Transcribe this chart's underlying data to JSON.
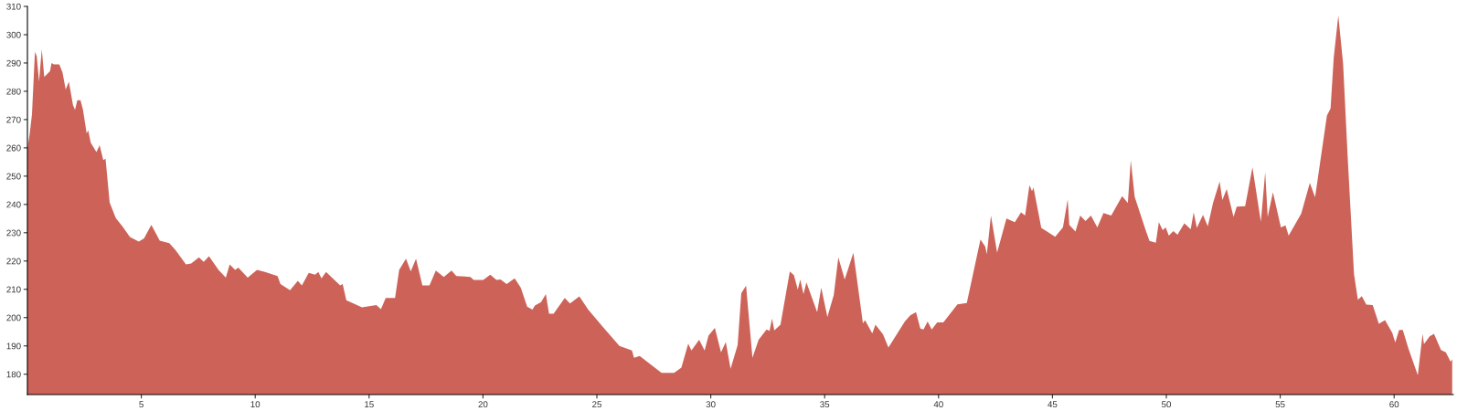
{
  "chart_data": {
    "type": "area",
    "color": "#cd6358",
    "xlim": [
      0,
      62.6
    ],
    "ylim": [
      172.8,
      310
    ],
    "xticks": [
      5,
      10,
      15,
      20,
      25,
      30,
      35,
      40,
      45,
      50,
      55,
      60
    ],
    "yticks": [
      180,
      190,
      200,
      210,
      220,
      230,
      240,
      250,
      260,
      270,
      280,
      290,
      300,
      310
    ],
    "grid": false,
    "legend": false,
    "x": [
      0,
      0.1,
      0.2,
      0.33,
      0.41,
      0.51,
      0.63,
      0.74,
      0.99,
      1.06,
      1.16,
      1.4,
      1.54,
      1.68,
      1.82,
      2.0,
      2.09,
      2.19,
      2.33,
      2.44,
      2.6,
      2.67,
      2.78,
      3.03,
      3.17,
      3.33,
      3.43,
      3.61,
      3.88,
      4.16,
      4.5,
      4.89,
      5.12,
      5.44,
      5.81,
      6.23,
      6.5,
      6.96,
      7.19,
      7.53,
      7.74,
      7.97,
      8.39,
      8.71,
      8.88,
      9.12,
      9.26,
      9.67,
      10.08,
      10.43,
      10.98,
      11.11,
      11.53,
      11.87,
      12.05,
      12.35,
      12.63,
      12.77,
      12.91,
      13.11,
      13.73,
      13.84,
      14.0,
      14.69,
      15.32,
      15.52,
      15.73,
      16.14,
      16.32,
      16.62,
      16.83,
      17.06,
      17.34,
      17.65,
      17.93,
      18.28,
      18.62,
      18.83,
      19.45,
      19.59,
      20.01,
      20.32,
      20.59,
      20.77,
      21.04,
      21.39,
      21.66,
      21.94,
      22.17,
      22.28,
      22.55,
      22.76,
      22.9,
      23.1,
      23.59,
      23.82,
      24.23,
      24.62,
      25.3,
      25.99,
      26.54,
      26.63,
      26.88,
      27.84,
      28.39,
      28.71,
      29.01,
      29.15,
      29.49,
      29.73,
      29.9,
      30.18,
      30.45,
      30.66,
      30.87,
      31.18,
      31.34,
      31.55,
      31.83,
      32.1,
      32.45,
      32.58,
      32.69,
      32.79,
      33.06,
      33.47,
      33.65,
      33.82,
      33.93,
      34.07,
      34.2,
      34.67,
      34.85,
      35.12,
      35.4,
      35.6,
      35.88,
      36.26,
      36.68,
      36.77,
      37.09,
      37.23,
      37.56,
      37.8,
      38.52,
      38.76,
      39.01,
      39.2,
      39.34,
      39.52,
      39.7,
      39.94,
      40.21,
      40.83,
      41.24,
      41.84,
      42.05,
      42.12,
      42.3,
      42.57,
      42.98,
      43.35,
      43.62,
      43.8,
      43.99,
      44.1,
      44.17,
      44.51,
      45.12,
      45.46,
      45.67,
      45.74,
      46.01,
      46.22,
      46.45,
      46.69,
      46.97,
      47.24,
      47.58,
      48.06,
      48.31,
      48.44,
      48.61,
      49.08,
      49.26,
      49.54,
      49.67,
      49.84,
      49.97,
      50.11,
      50.31,
      50.49,
      50.79,
      51.07,
      51.2,
      51.34,
      51.61,
      51.82,
      52.05,
      52.34,
      52.46,
      52.65,
      52.95,
      53.09,
      53.46,
      53.78,
      54.15,
      54.34,
      54.45,
      54.68,
      55.03,
      55.23,
      55.37,
      55.92,
      56.3,
      56.53,
      57.05,
      57.21,
      57.35,
      57.55,
      57.76,
      57.96,
      58.24,
      58.41,
      58.58,
      58.78,
      59.06,
      59.33,
      59.6,
      59.92,
      60.05,
      60.22,
      60.38,
      60.63,
      61.04,
      61.25,
      61.31,
      61.56,
      61.75,
      62.06,
      62.27,
      62.48,
      62.55
    ],
    "values": [
      259.6,
      265,
      271.8,
      293.9,
      292.3,
      283.4,
      294.8,
      285.1,
      287.1,
      290.0,
      289.5,
      289.5,
      286.7,
      280.6,
      283.4,
      275.1,
      273.4,
      276.8,
      276.8,
      273.4,
      265.1,
      266.2,
      261.8,
      258.5,
      260.9,
      255.7,
      256.2,
      240.7,
      235.2,
      232.4,
      228.5,
      226.9,
      228.0,
      232.8,
      227.2,
      226.3,
      223.9,
      218.8,
      219.1,
      221.3,
      219.7,
      221.7,
      216.9,
      214.1,
      218.8,
      216.9,
      217.7,
      214.1,
      216.9,
      216.1,
      214.7,
      211.9,
      209.7,
      213.0,
      211.4,
      215.8,
      215.2,
      216.1,
      213.9,
      216.1,
      211.4,
      211.9,
      206.1,
      203.6,
      204.4,
      203.0,
      206.9,
      206.9,
      216.9,
      220.8,
      216.4,
      220.8,
      211.4,
      211.4,
      216.6,
      214.4,
      216.6,
      214.7,
      214.4,
      213.3,
      213.3,
      215.2,
      213.3,
      213.5,
      211.9,
      213.9,
      210.6,
      203.9,
      202.8,
      204.3,
      205.5,
      208.3,
      201.4,
      201.4,
      206.9,
      205.0,
      207.5,
      202.8,
      196.4,
      190.0,
      188.4,
      185.8,
      186.4,
      180.5,
      180.5,
      182.3,
      190.8,
      188.4,
      192.2,
      188.4,
      193.6,
      196.4,
      187.7,
      191.4,
      181.9,
      190.3,
      208.6,
      211.3,
      185.8,
      192.2,
      195.8,
      195.3,
      199.7,
      195.5,
      197.5,
      216.3,
      215.0,
      209.9,
      213.5,
      208.3,
      212.4,
      201.9,
      210.6,
      200.2,
      208.0,
      221.3,
      213.5,
      222.9,
      198.0,
      199.1,
      194.4,
      197.5,
      194.1,
      189.4,
      198.6,
      200.8,
      201.9,
      196.1,
      195.8,
      198.6,
      195.8,
      198.3,
      198.3,
      204.7,
      205.2,
      227.6,
      225.1,
      222.4,
      236.1,
      223.0,
      235.0,
      233.7,
      237.2,
      236.1,
      246.8,
      244.7,
      245.9,
      231.7,
      228.6,
      231.9,
      241.8,
      232.8,
      230.4,
      236.1,
      234.1,
      236.1,
      231.9,
      237.0,
      236.1,
      242.9,
      240.5,
      255.6,
      242.7,
      231.2,
      227.1,
      226.5,
      233.7,
      230.9,
      231.9,
      229.0,
      230.6,
      229.3,
      233.3,
      231.2,
      237.2,
      231.7,
      236.3,
      232.3,
      240.5,
      248.1,
      241.6,
      245.4,
      235.6,
      239.2,
      239.4,
      253.1,
      233.9,
      251.4,
      235.6,
      244.3,
      231.9,
      232.6,
      229.0,
      236.7,
      247.6,
      242.5,
      271.4,
      273.9,
      292.0,
      306.8,
      289.8,
      256.9,
      215.3,
      206.3,
      207.6,
      204.6,
      204.4,
      197.8,
      199.1,
      194.6,
      191.2,
      195.6,
      195.6,
      189.0,
      179.7,
      194.3,
      190.6,
      193.4,
      194.3,
      188.5,
      187.7,
      184.4,
      185.2
    ]
  }
}
